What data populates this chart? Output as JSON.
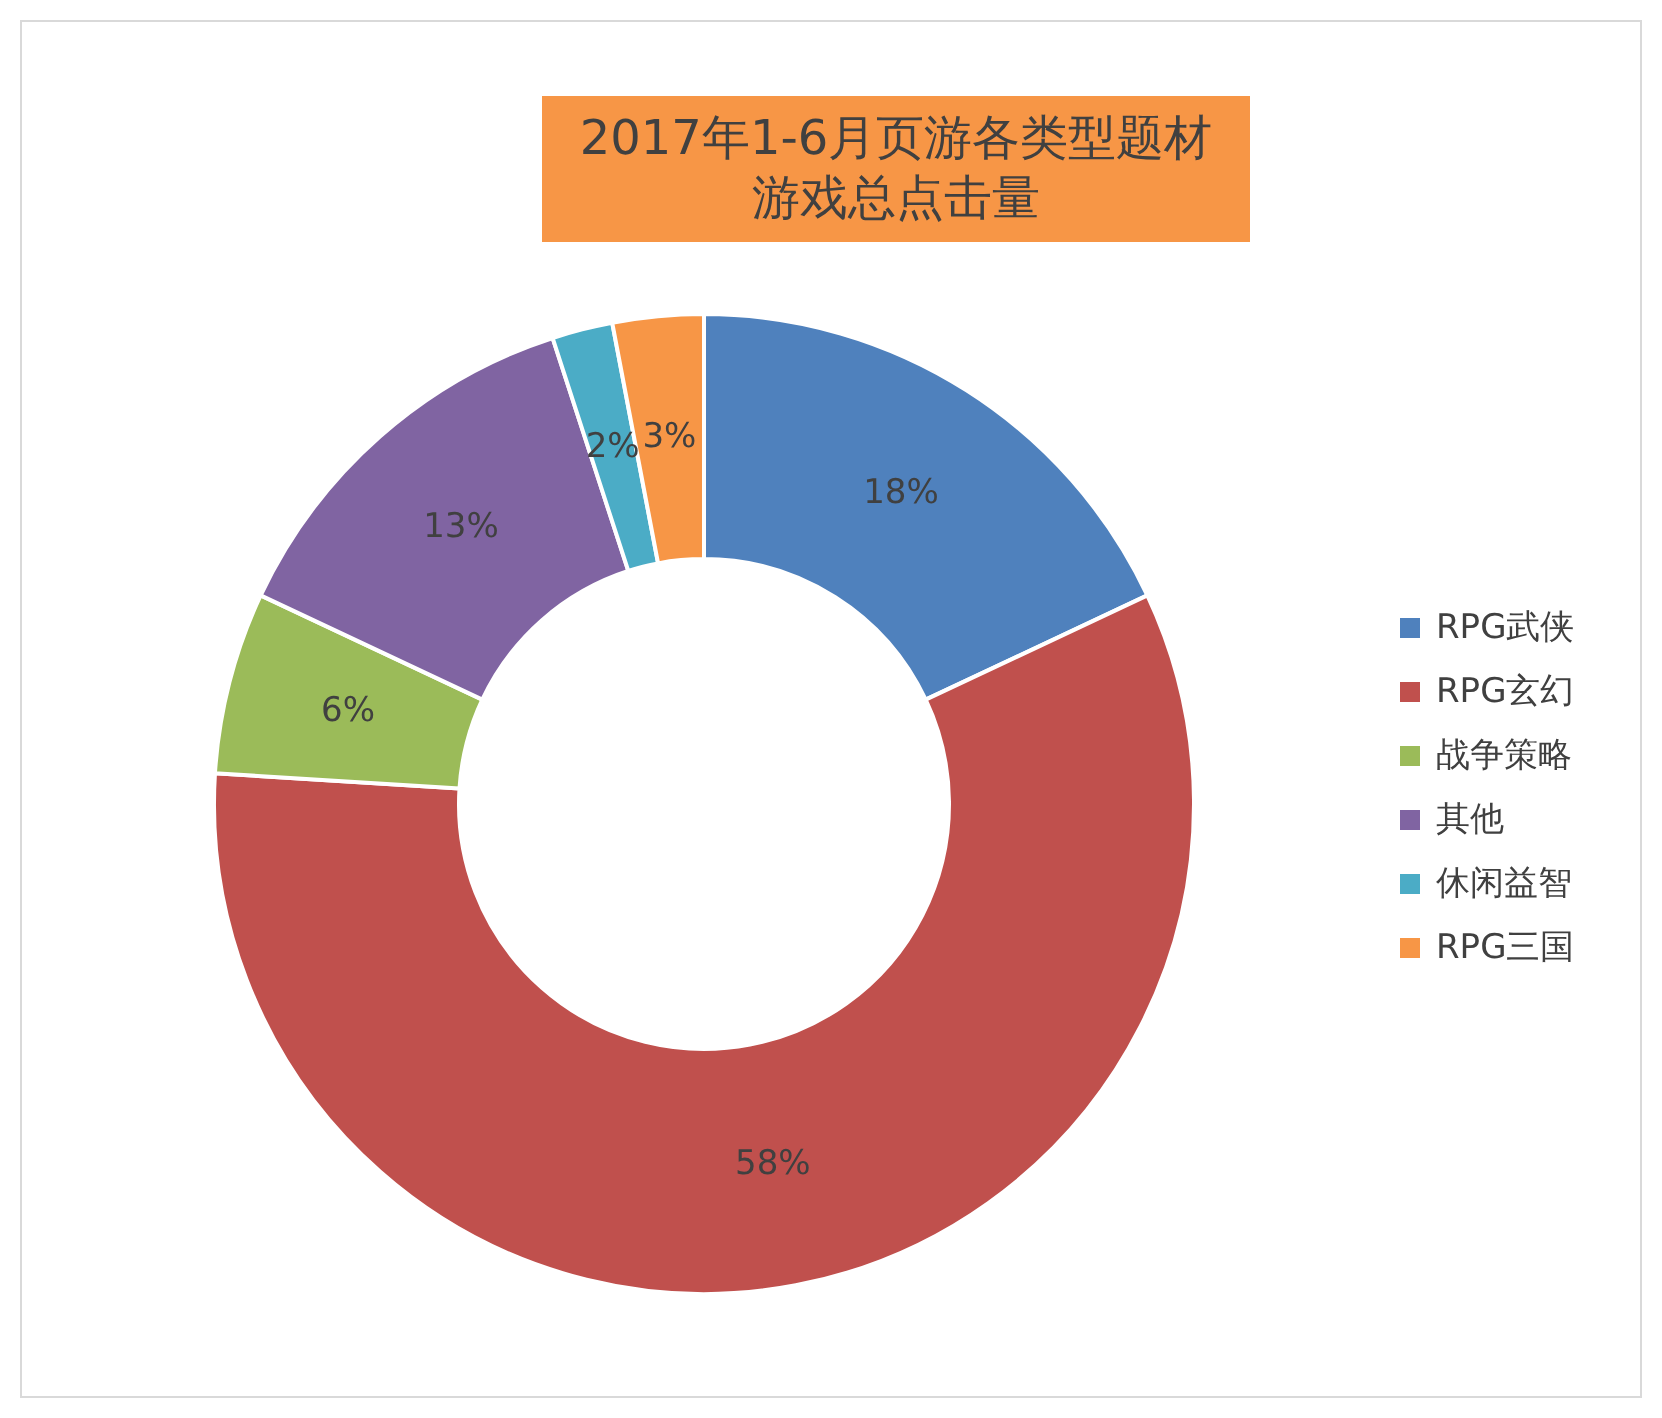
{
  "chart_data": {
    "type": "donut",
    "title": "2017年1-6月页游各类型题材游戏总点击量",
    "categories": [
      "RPG武侠",
      "RPG玄幻",
      "战争策略",
      "其他",
      "休闲益智",
      "RPG三国"
    ],
    "values": [
      18,
      58,
      6,
      13,
      2,
      3
    ],
    "colors": [
      "#4f81bd",
      "#c0504d",
      "#9bbb59",
      "#8064a2",
      "#4bacc6",
      "#f79646"
    ],
    "value_labels": [
      "18%",
      "58%",
      "6%",
      "13%",
      "2%",
      "3%"
    ],
    "legend": "right"
  }
}
